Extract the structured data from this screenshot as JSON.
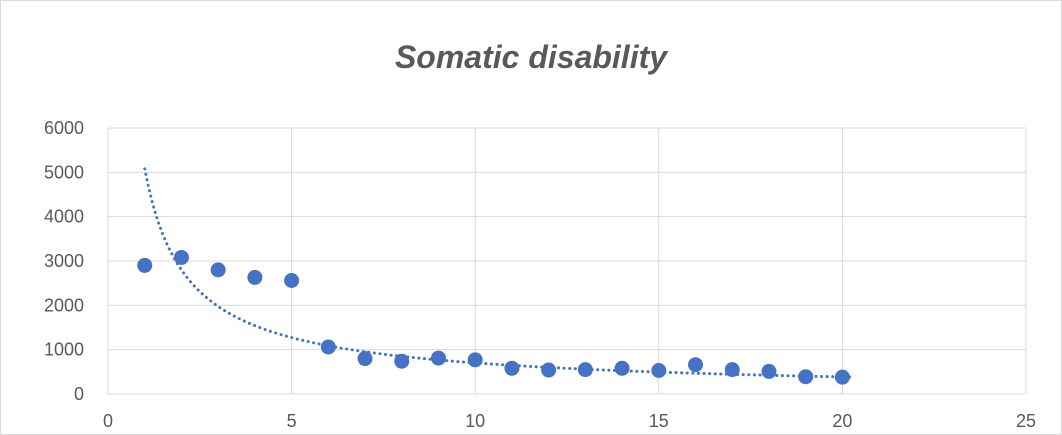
{
  "chart_data": {
    "type": "scatter",
    "title": "Somatic disability",
    "xlabel": "",
    "ylabel": "",
    "xlim": [
      0,
      25
    ],
    "ylim": [
      0,
      6000
    ],
    "xticks": [
      0,
      5,
      10,
      15,
      20,
      25
    ],
    "yticks": [
      0,
      1000,
      2000,
      3000,
      4000,
      5000,
      6000
    ],
    "grid": true,
    "legend": "none",
    "series": [
      {
        "color": "#4472c4",
        "x": [
          1,
          2,
          3,
          4,
          5,
          6,
          7,
          8,
          9,
          10,
          11,
          12,
          13,
          14,
          15,
          16,
          17,
          18,
          19,
          20
        ],
        "y": [
          2900,
          3080,
          2800,
          2630,
          2560,
          1060,
          800,
          740,
          810,
          770,
          580,
          540,
          550,
          580,
          530,
          660,
          550,
          510,
          390,
          380
        ]
      }
    ],
    "trendline": {
      "type": "power",
      "style": "dotted",
      "color": "#4472c4",
      "x_range": [
        1,
        20.3
      ]
    },
    "colors": {
      "grid": "#d9d9d9",
      "axis_text": "#595959",
      "marker": "#4472c4"
    }
  }
}
